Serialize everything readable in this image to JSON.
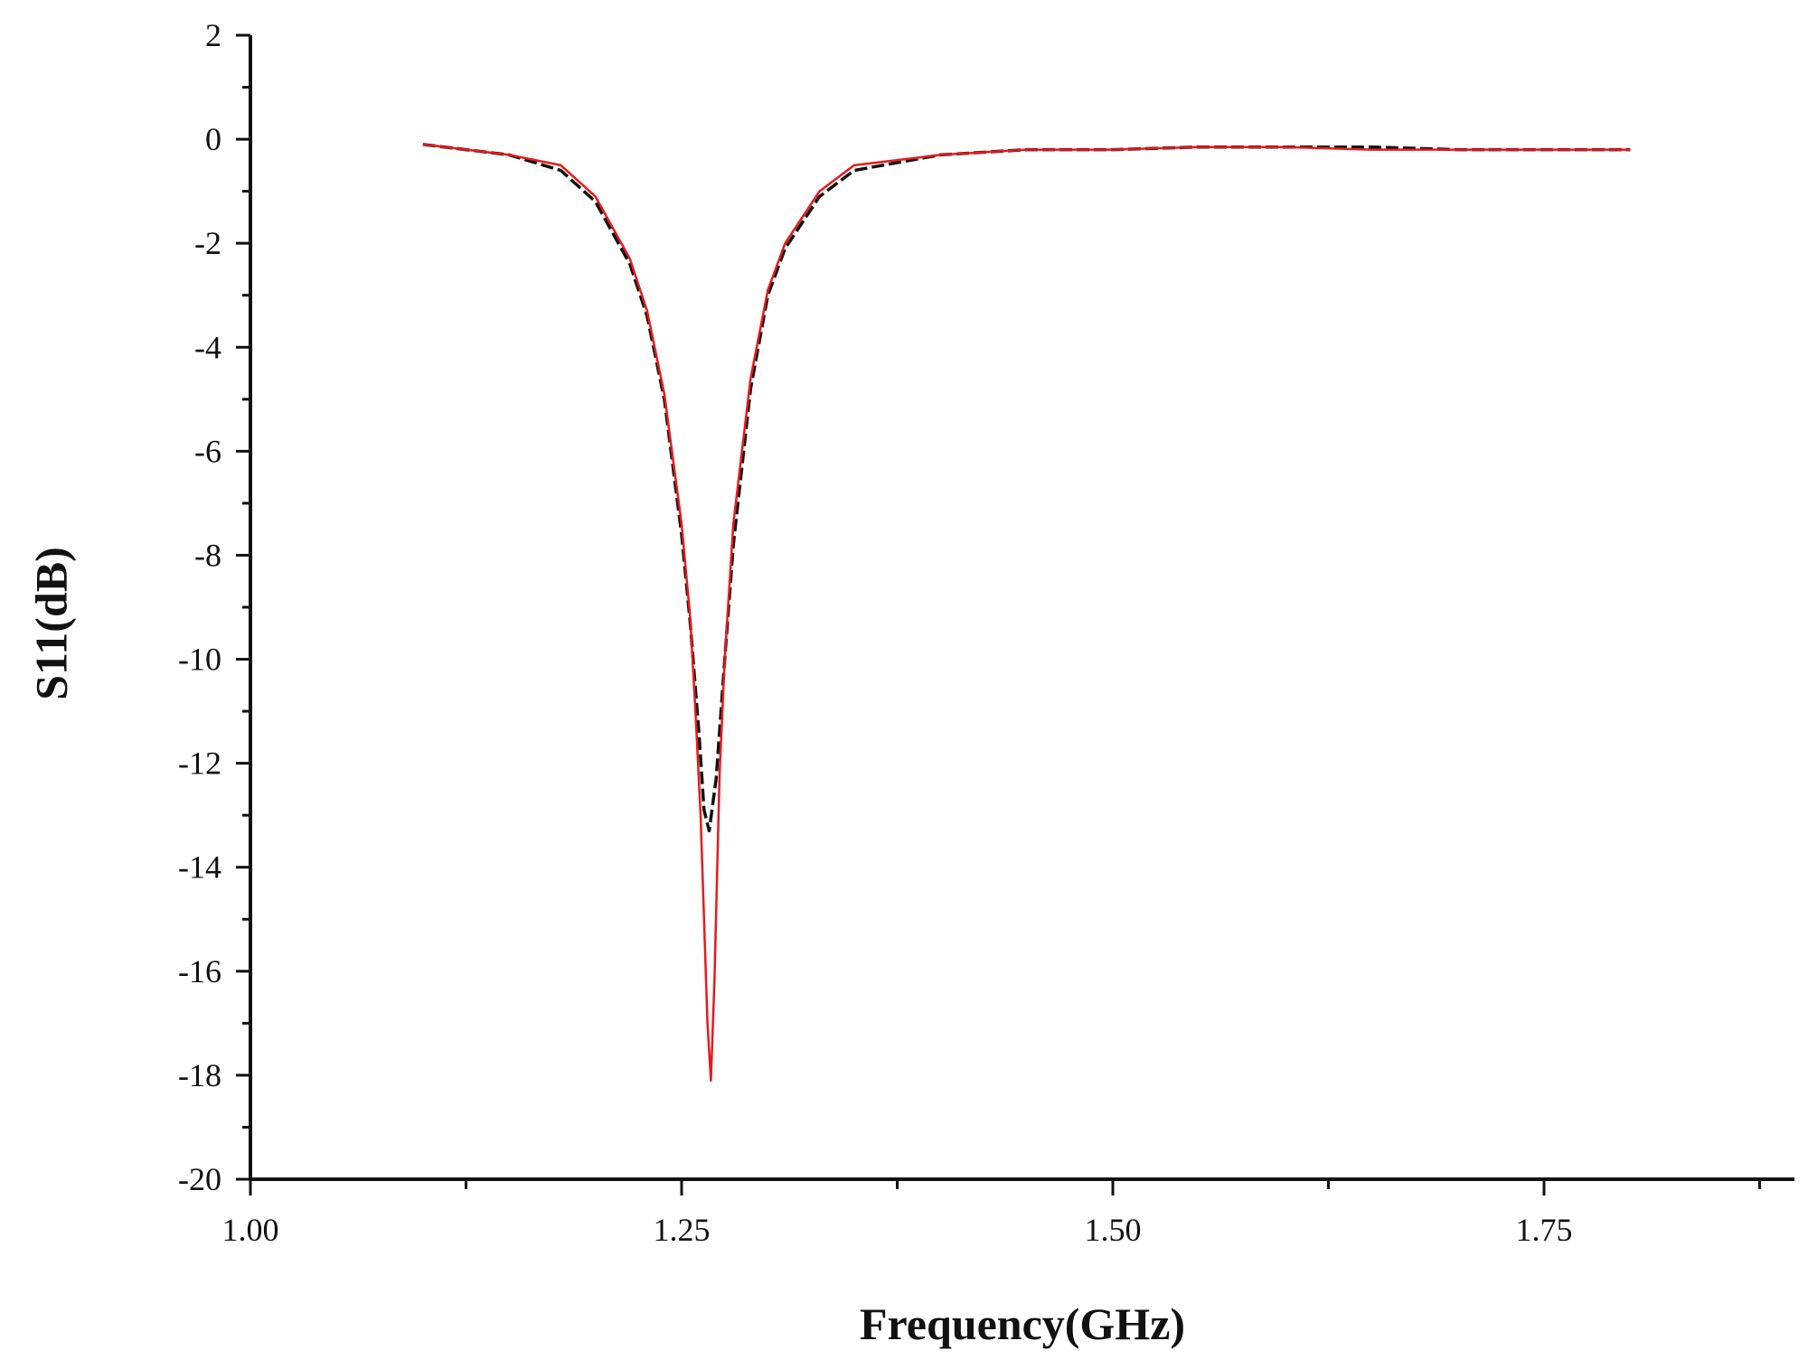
{
  "chart_data": {
    "type": "line",
    "title": "",
    "xlabel": "Frequency(GHz)",
    "ylabel": "S11(dB)",
    "xlim": [
      1.0,
      1.9
    ],
    "ylim": [
      -20,
      2
    ],
    "x_ticks": [
      1.0,
      1.25,
      1.5,
      1.75
    ],
    "x_tick_labels": [
      "1.00",
      "1.25",
      "1.50",
      "1.75"
    ],
    "x_minor_ticks": [
      1.125,
      1.375,
      1.625,
      1.875
    ],
    "y_ticks": [
      2,
      0,
      -2,
      -4,
      -6,
      -8,
      -10,
      -12,
      -14,
      -16,
      -18,
      -20
    ],
    "y_tick_labels": [
      "2",
      "0",
      "-2",
      "-4",
      "-6",
      "-8",
      "-10",
      "-12",
      "-14",
      "-16",
      "-18",
      "-20"
    ],
    "grid": false,
    "legend": "none",
    "series": [
      {
        "color": "#111111",
        "dash": "dashed",
        "x": [
          1.1,
          1.15,
          1.18,
          1.2,
          1.22,
          1.23,
          1.24,
          1.25,
          1.255,
          1.26,
          1.263,
          1.266,
          1.27,
          1.275,
          1.28,
          1.29,
          1.3,
          1.31,
          1.33,
          1.35,
          1.4,
          1.45,
          1.5,
          1.55,
          1.6,
          1.65,
          1.7,
          1.75,
          1.8
        ],
        "y": [
          -0.1,
          -0.3,
          -0.6,
          -1.2,
          -2.4,
          -3.4,
          -5.0,
          -7.6,
          -9.3,
          -11.4,
          -12.9,
          -13.3,
          -12.3,
          -10.0,
          -7.8,
          -4.8,
          -3.0,
          -2.1,
          -1.1,
          -0.6,
          -0.3,
          -0.2,
          -0.2,
          -0.15,
          -0.15,
          -0.15,
          -0.2,
          -0.2,
          -0.2
        ]
      },
      {
        "color": "#e8191c",
        "dash": "solid",
        "x": [
          1.1,
          1.15,
          1.18,
          1.2,
          1.22,
          1.23,
          1.24,
          1.25,
          1.255,
          1.258,
          1.261,
          1.263,
          1.265,
          1.267,
          1.269,
          1.272,
          1.275,
          1.28,
          1.29,
          1.3,
          1.31,
          1.33,
          1.35,
          1.4,
          1.45,
          1.5,
          1.55,
          1.6,
          1.65,
          1.7,
          1.75,
          1.8
        ],
        "y": [
          -0.1,
          -0.3,
          -0.5,
          -1.1,
          -2.3,
          -3.3,
          -4.9,
          -7.4,
          -9.2,
          -11.0,
          -13.0,
          -15.0,
          -17.0,
          -18.1,
          -16.2,
          -12.2,
          -10.0,
          -7.4,
          -4.6,
          -2.9,
          -2.0,
          -1.0,
          -0.5,
          -0.3,
          -0.2,
          -0.2,
          -0.15,
          -0.15,
          -0.2,
          -0.2,
          -0.2,
          -0.2
        ]
      }
    ]
  }
}
